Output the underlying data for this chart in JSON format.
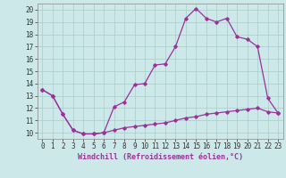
{
  "title": "",
  "xlabel": "Windchill (Refroidissement éolien,°C)",
  "ylabel": "",
  "bg_color": "#cce8e8",
  "grid_color": "#aacccc",
  "line_color": "#993399",
  "x_ticks": [
    0,
    1,
    2,
    3,
    4,
    5,
    6,
    7,
    8,
    9,
    10,
    11,
    12,
    13,
    14,
    15,
    16,
    17,
    18,
    19,
    20,
    21,
    22,
    23
  ],
  "y_ticks": [
    10,
    11,
    12,
    13,
    14,
    15,
    16,
    17,
    18,
    19,
    20
  ],
  "xlim": [
    -0.5,
    23.5
  ],
  "ylim": [
    9.5,
    20.5
  ],
  "line1_x": [
    0,
    1,
    2,
    3,
    4,
    5,
    6,
    7,
    8,
    9,
    10,
    11,
    12,
    13,
    14,
    15,
    16,
    17,
    18,
    19,
    20,
    21,
    22,
    23
  ],
  "line1_y": [
    13.5,
    13.0,
    11.5,
    10.2,
    9.9,
    9.9,
    10.0,
    12.1,
    12.5,
    13.9,
    14.0,
    15.5,
    15.6,
    17.0,
    19.3,
    20.1,
    19.3,
    19.0,
    19.3,
    17.8,
    17.6,
    17.0,
    12.8,
    11.6
  ],
  "line2_x": [
    0,
    1,
    2,
    3,
    4,
    5,
    6,
    7,
    8,
    9,
    10,
    11,
    12,
    13,
    14,
    15,
    16,
    17,
    18,
    19,
    20,
    21,
    22,
    23
  ],
  "line2_y": [
    13.5,
    13.0,
    11.5,
    10.2,
    9.9,
    9.9,
    10.0,
    10.2,
    10.4,
    10.5,
    10.6,
    10.7,
    10.8,
    11.0,
    11.2,
    11.3,
    11.5,
    11.6,
    11.7,
    11.8,
    11.9,
    12.0,
    11.7,
    11.6
  ],
  "tick_fontsize": 5.5,
  "xlabel_fontsize": 6.0
}
